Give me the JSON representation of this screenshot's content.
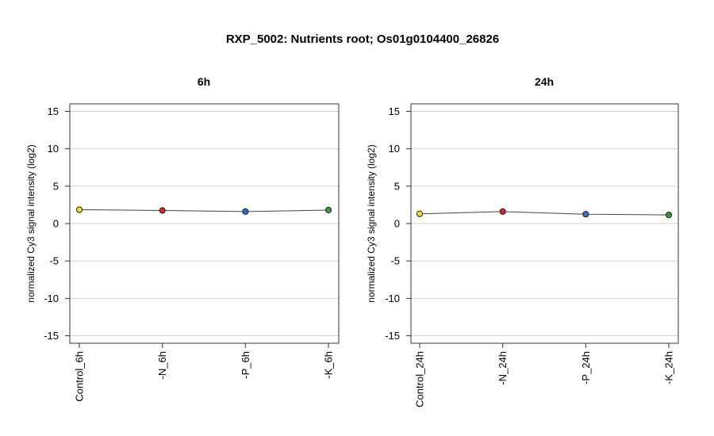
{
  "figure_title": "RXP_5002: Nutrients root; Os01g0104400_26826",
  "chart_data": [
    {
      "type": "line",
      "title": "6h",
      "ylabel": "normalized Cy3 signal intensity (log2)",
      "xlabel": "",
      "categories": [
        "Control_6h",
        "-N_6h",
        "-P_6h",
        "-K_6h"
      ],
      "values": [
        1.85,
        1.75,
        1.6,
        1.8
      ],
      "point_colors": [
        "#f2e318",
        "#e02020",
        "#2a6fd6",
        "#2e9e2e"
      ],
      "ylim": [
        -16,
        16
      ],
      "yticks": [
        -15,
        -10,
        -5,
        0,
        5,
        10,
        15
      ],
      "grid": true
    },
    {
      "type": "line",
      "title": "24h",
      "ylabel": "normalized Cy3 signal intensity (log2)",
      "xlabel": "",
      "categories": [
        "Control_24h",
        "-N_24h",
        "-P_24h",
        "-K_24h"
      ],
      "values": [
        1.3,
        1.6,
        1.25,
        1.15
      ],
      "point_colors": [
        "#f2e318",
        "#e02020",
        "#2a6fd6",
        "#2e9e2e"
      ],
      "ylim": [
        -16,
        16
      ],
      "yticks": [
        -15,
        -10,
        -5,
        0,
        5,
        10,
        15
      ],
      "grid": true
    }
  ]
}
